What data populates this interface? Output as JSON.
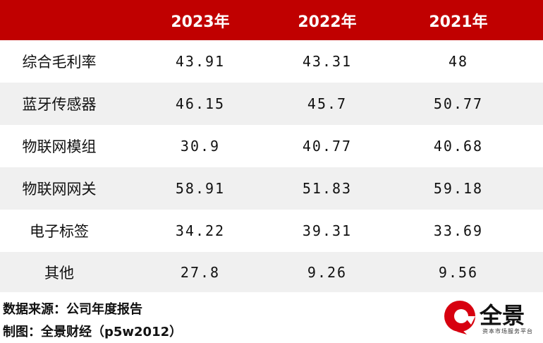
{
  "table": {
    "columns": [
      "2023年",
      "2022年",
      "2021年"
    ],
    "rows": [
      {
        "label": "综合毛利率",
        "values": [
          "43.91",
          "43.31",
          "48"
        ]
      },
      {
        "label": "蓝牙传感器",
        "values": [
          "46.15",
          "45.7",
          "50.77"
        ]
      },
      {
        "label": "物联网模组",
        "values": [
          "30.9",
          "40.77",
          "40.68"
        ]
      },
      {
        "label": "物联网网关",
        "values": [
          "58.91",
          "51.83",
          "59.18"
        ]
      },
      {
        "label": "电子标签",
        "values": [
          "34.22",
          "39.31",
          "33.69"
        ]
      },
      {
        "label": "其他",
        "values": [
          "27.8",
          "9.26",
          "9.56"
        ]
      }
    ]
  },
  "footer": {
    "source": "数据来源：公司年度报告",
    "credit": "制图：全景财经（p5w2012）"
  },
  "logo": {
    "name": "全景",
    "tagline": "资本市场服务平台"
  }
}
